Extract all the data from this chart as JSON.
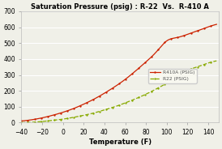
{
  "title": "Saturation Pressure (psig) : R-22  Vs.  R-410 A",
  "xlabel": "Temperature (F)",
  "xlim": [
    -40,
    150
  ],
  "ylim": [
    0,
    700
  ],
  "xticks": [
    -40,
    -20,
    0,
    20,
    40,
    60,
    80,
    100,
    120,
    140
  ],
  "yticks": [
    0,
    100,
    200,
    300,
    400,
    500,
    600,
    700
  ],
  "r410a_color": "#cc2200",
  "r22_color": "#88aa00",
  "legend_r410a": "R410A (PSIG)",
  "legend_r22": "R22 (PSIG)",
  "background_color": "#f0f0e8",
  "title_fontsize": 6.0,
  "axis_label_fontsize": 6.0,
  "tick_fontsize": 5.5,
  "r410a_temps": [
    -40,
    -30,
    -20,
    -10,
    0,
    10,
    20,
    30,
    40,
    50,
    60,
    70,
    80,
    90,
    100,
    110,
    120,
    130,
    140,
    148
  ],
  "r410a_psig": [
    10,
    18,
    30,
    46,
    65,
    88,
    116,
    148,
    185,
    226,
    272,
    325,
    382,
    445,
    514,
    535,
    555,
    578,
    602,
    618
  ],
  "r22_temps": [
    -40,
    -30,
    -20,
    -10,
    0,
    10,
    20,
    30,
    40,
    50,
    60,
    70,
    80,
    90,
    100,
    110,
    120,
    130,
    140,
    148
  ],
  "r22_psig": [
    0,
    2,
    7,
    14,
    22,
    33,
    46,
    61,
    80,
    100,
    124,
    150,
    179,
    212,
    248,
    287,
    328,
    352,
    375,
    388
  ]
}
